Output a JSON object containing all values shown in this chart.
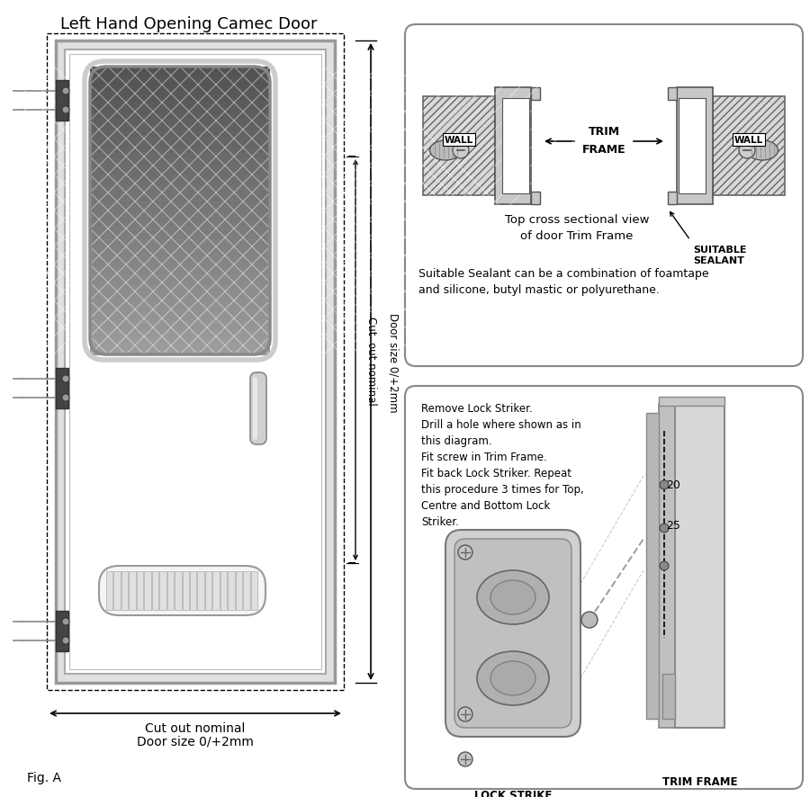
{
  "title": "Left Hand Opening Camec Door",
  "fig_label": "Fig. A",
  "background_color": "#ffffff",
  "top_box_title": "Top cross sectional view\nof door Trim Frame",
  "sealant_label": "SUITABLE\nSEALANT",
  "trim_label_top": "TRIM\nFRAME",
  "wall_label": "WALL",
  "sealant_text": "Suitable Sealant can be a combination of foamtape\nand silicone, butyl mastic or polyurethane.",
  "instructions": "Remove Lock Striker.\nDrill a hole where shown as in\nthis diagram.\nFit screw in Trim Frame.\nFit back Lock Striker. Repeat\nthis procedure 3 times for Top,\nCentre and Bottom Lock\nStriker.",
  "lock_label": "LOCK STRIKE",
  "trim_label_bot": "TRIM FRAME",
  "dim1": "20",
  "dim2": "25",
  "door_size_label": "Door size 0/+2mm",
  "cutout_label": "Cut  out nominal",
  "bottom_cutout_line1": "Cut out nominal",
  "bottom_cutout_line2": "Door size 0/+2mm"
}
